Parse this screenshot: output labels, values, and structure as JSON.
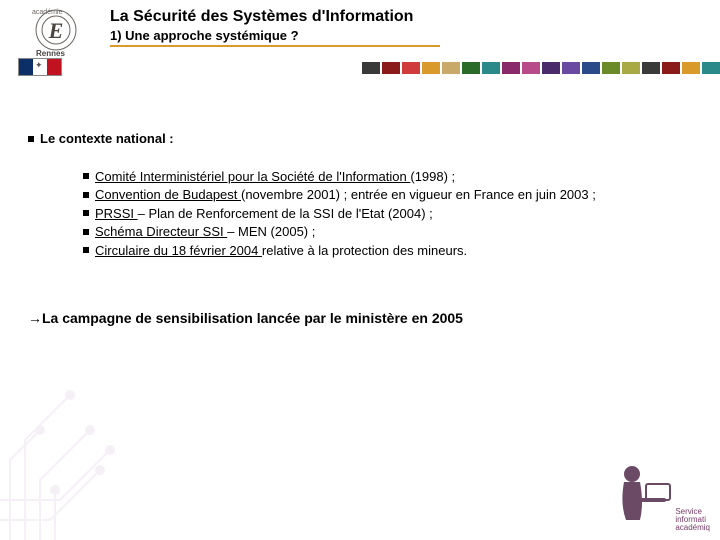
{
  "header": {
    "title": "La Sécurité des Systèmes d'Information",
    "subtitle": "1) Une approche systémique ?",
    "underline_color": "#d99a2b",
    "logo_text_top": "académie",
    "logo_text_bottom": "Rennes",
    "flag_colors": [
      "#0b2f66",
      "#ffffff",
      "#c1121f"
    ]
  },
  "color_band": [
    "#3a3a3a",
    "#8b1a1a",
    "#d03c3c",
    "#d99a2b",
    "#c9a96a",
    "#2a6b2a",
    "#2a8a8a",
    "#8a2a6a",
    "#b94a8a",
    "#4a2a6a",
    "#6a4aa0",
    "#2a4a8a",
    "#6a8a2a",
    "#aaaa44",
    "#3a3a3a",
    "#8b1a1a",
    "#d99a2b",
    "#2a8a8a"
  ],
  "content": {
    "section_head": "Le contexte national :",
    "bullets": [
      {
        "link": "Comité Interministériel pour la Société de l'Information ",
        "tail": "(1998) ;"
      },
      {
        "link": "Convention de Budapest ",
        "tail": "(novembre 2001) ; entrée en vigueur en France en juin 2003 ;"
      },
      {
        "link": "PRSSI ",
        "tail": "– Plan de Renforcement de la SSI de l'Etat (2004) ;"
      },
      {
        "link": "Schéma Directeur SSI ",
        "tail": "– MEN (2005) ;"
      },
      {
        "link": "Circulaire du 18 février 2004 ",
        "tail": "relative à la protection des mineurs."
      }
    ],
    "conclusion_arrow": "→",
    "conclusion": "La campagne de sensibilisation lancée par le ministère en 2005"
  },
  "footer": {
    "line1": "Service",
    "line2": "informati",
    "line3": "académiq",
    "color": "#7a3a6a"
  },
  "circuit_color": "#d8c7dc"
}
